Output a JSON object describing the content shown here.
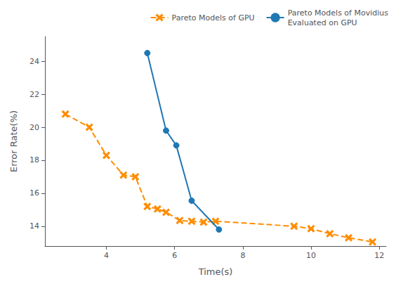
{
  "chart_data": {
    "type": "line",
    "x_label": "Time(s)",
    "y_label": "Error Rate(%)",
    "series": [
      {
        "name": "Pareto Models of GPU",
        "color": "#ff8c00",
        "marker": "x",
        "line_style": "dashed",
        "x": [
          2.8,
          3.5,
          4.0,
          4.5,
          4.85,
          5.2,
          5.5,
          5.75,
          6.15,
          6.5,
          6.85,
          7.2,
          9.5,
          10.0,
          10.55,
          11.1,
          11.8
        ],
        "values": [
          20.8,
          20.0,
          18.3,
          17.1,
          17.0,
          15.2,
          15.05,
          14.85,
          14.35,
          14.3,
          14.25,
          14.3,
          14.0,
          13.85,
          13.55,
          13.3,
          13.05
        ]
      },
      {
        "name": "Pareto Models of Movidius\nEvaluated on GPU",
        "color": "#1f77b4",
        "marker": "circle",
        "line_style": "solid",
        "x": [
          5.2,
          5.75,
          6.05,
          6.5,
          7.3
        ],
        "values": [
          24.5,
          19.8,
          18.9,
          15.55,
          13.8
        ]
      }
    ],
    "xlim": [
      2.2,
      12.2
    ],
    "ylim": [
      12.8,
      25.5
    ],
    "xticks": [
      4,
      6,
      8,
      10,
      12
    ],
    "yticks": [
      14,
      16,
      18,
      20,
      22,
      24
    ],
    "legend": "upper right",
    "grid": false
  }
}
